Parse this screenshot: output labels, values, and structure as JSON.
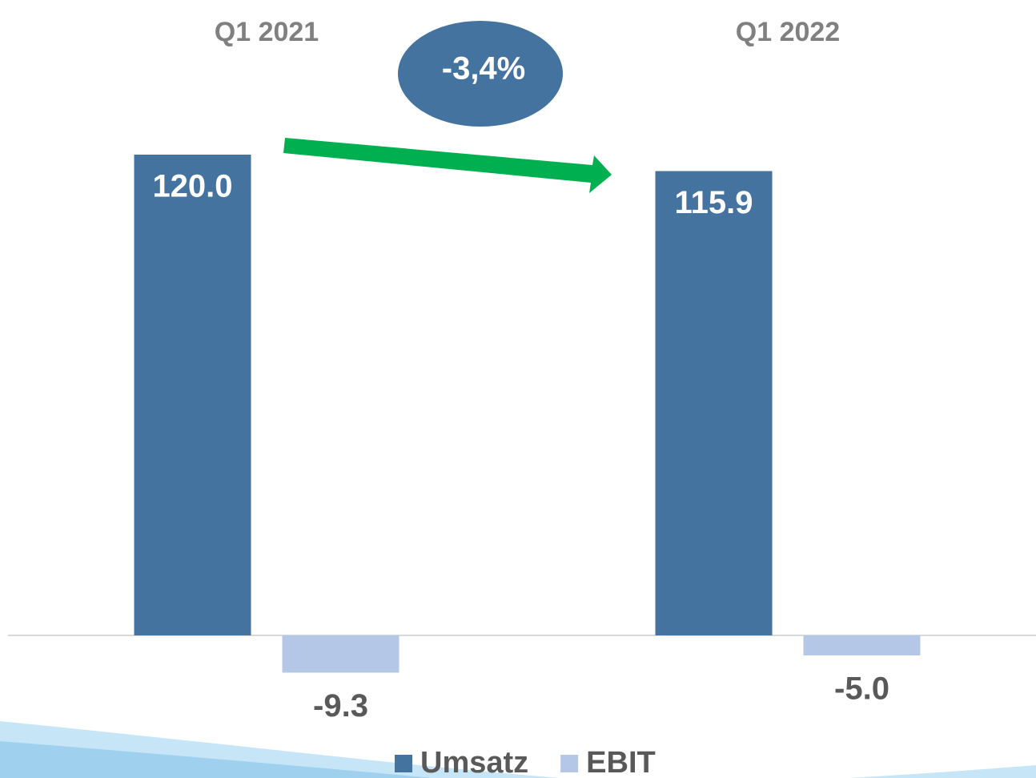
{
  "chart_data": {
    "type": "bar",
    "categories": [
      "Q1 2021",
      "Q1 2022"
    ],
    "series": [
      {
        "name": "Umsatz",
        "color": "#44739f",
        "values": [
          120.0,
          115.9
        ],
        "value_labels": [
          "120.0",
          "115.9"
        ]
      },
      {
        "name": "EBIT",
        "color": "#b4c7e7",
        "values": [
          -9.3,
          -5.0
        ],
        "value_labels": [
          "-9.3",
          "-5.0"
        ]
      }
    ],
    "ylim": [
      -20,
      130
    ],
    "annotation": "-3,4%",
    "legend": "bottom"
  }
}
